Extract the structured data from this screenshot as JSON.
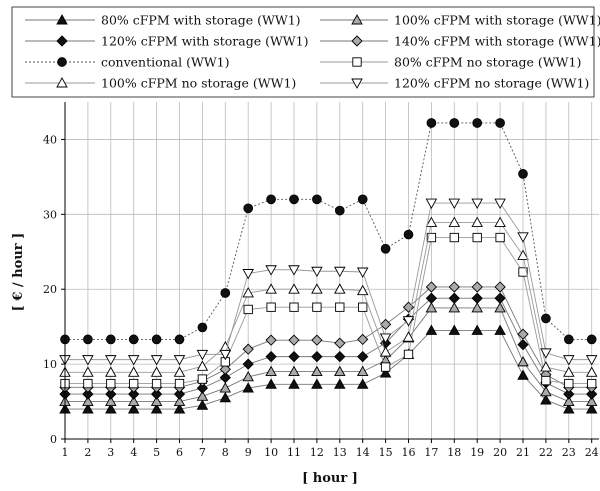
{
  "chart_data": {
    "type": "line",
    "xlabel": "[ hour ]",
    "ylabel": "[ € / hour ]",
    "ylim": [
      0,
      45
    ],
    "yticks": [
      0,
      10,
      20,
      30,
      40
    ],
    "x": [
      1,
      2,
      3,
      4,
      5,
      6,
      7,
      8,
      9,
      10,
      11,
      12,
      13,
      14,
      15,
      16,
      17,
      18,
      19,
      20,
      21,
      22,
      23,
      24
    ],
    "grid": "on",
    "legend_position": "top",
    "series": [
      {
        "name": "80% cFPM with storage (WW1)",
        "marker": "triangle-up",
        "fill": "#111111",
        "line": "#777777",
        "dash": "",
        "values": [
          4.0,
          4.0,
          4.0,
          4.0,
          4.0,
          4.0,
          4.5,
          5.5,
          6.8,
          7.3,
          7.3,
          7.3,
          7.3,
          7.3,
          8.8,
          11.3,
          14.5,
          14.5,
          14.5,
          14.5,
          8.5,
          5.2,
          4.0,
          4.0
        ]
      },
      {
        "name": "100% cFPM with storage (WW1)",
        "marker": "triangle-up",
        "fill": "#aaaaaa",
        "line": "#777777",
        "dash": "",
        "values": [
          5.0,
          5.0,
          5.0,
          5.0,
          5.0,
          5.0,
          5.7,
          6.8,
          8.3,
          9.0,
          9.0,
          9.0,
          9.0,
          9.0,
          10.5,
          13.5,
          17.5,
          17.5,
          17.5,
          17.5,
          10.3,
          6.3,
          5.0,
          5.0
        ]
      },
      {
        "name": "120% cFPM with storage (WW1)",
        "marker": "diamond",
        "fill": "#111111",
        "line": "#777777",
        "dash": "",
        "values": [
          6.0,
          6.0,
          6.0,
          6.0,
          6.0,
          6.0,
          6.8,
          8.2,
          10.0,
          11.0,
          11.0,
          11.0,
          11.0,
          11.0,
          12.8,
          16.0,
          18.8,
          18.8,
          18.8,
          18.8,
          12.6,
          7.5,
          6.0,
          6.0
        ]
      },
      {
        "name": "140% cFPM with storage (WW1)",
        "marker": "diamond",
        "fill": "#aaaaaa",
        "line": "#777777",
        "dash": "",
        "values": [
          6.9,
          6.9,
          6.9,
          6.9,
          6.9,
          6.9,
          7.7,
          9.3,
          12.0,
          13.2,
          13.2,
          13.2,
          12.8,
          13.3,
          15.3,
          17.6,
          20.3,
          20.3,
          20.3,
          20.3,
          14.0,
          8.6,
          6.9,
          6.9
        ]
      },
      {
        "name": "conventional (WW1)",
        "marker": "circle",
        "fill": "#111111",
        "line": "#555555",
        "dash": "2,2",
        "values": [
          13.3,
          13.3,
          13.3,
          13.3,
          13.3,
          13.3,
          14.9,
          19.5,
          30.8,
          32.0,
          32.0,
          32.0,
          30.5,
          32.0,
          25.4,
          27.3,
          42.2,
          42.2,
          42.2,
          42.2,
          35.4,
          16.1,
          13.3,
          13.3
        ]
      },
      {
        "name": "80% cFPM no storage (WW1)",
        "marker": "square",
        "fill": "#ffffff",
        "line": "#999999",
        "dash": "",
        "values": [
          7.4,
          7.4,
          7.4,
          7.4,
          7.4,
          7.4,
          8.0,
          10.3,
          17.3,
          17.6,
          17.6,
          17.6,
          17.6,
          17.6,
          9.6,
          11.3,
          26.9,
          26.9,
          26.9,
          26.9,
          22.3,
          7.8,
          7.4,
          7.4
        ]
      },
      {
        "name": "100% cFPM no storage (WW1)",
        "marker": "triangle-up",
        "fill": "#ffffff",
        "line": "#999999",
        "dash": "",
        "values": [
          8.9,
          8.9,
          8.9,
          8.9,
          8.9,
          8.9,
          9.7,
          12.3,
          19.5,
          20.0,
          20.0,
          20.0,
          20.0,
          19.8,
          11.6,
          13.6,
          28.9,
          28.9,
          28.9,
          28.9,
          24.5,
          9.6,
          8.9,
          8.9
        ]
      },
      {
        "name": "120% cFPM no storage (WW1)",
        "marker": "triangle-down",
        "fill": "#ffffff",
        "line": "#999999",
        "dash": "",
        "values": [
          10.6,
          10.6,
          10.6,
          10.6,
          10.6,
          10.6,
          11.3,
          11.3,
          22.1,
          22.6,
          22.6,
          22.4,
          22.4,
          22.3,
          13.5,
          15.8,
          31.5,
          31.5,
          31.5,
          31.5,
          27.0,
          11.5,
          10.6,
          10.6
        ]
      }
    ]
  }
}
